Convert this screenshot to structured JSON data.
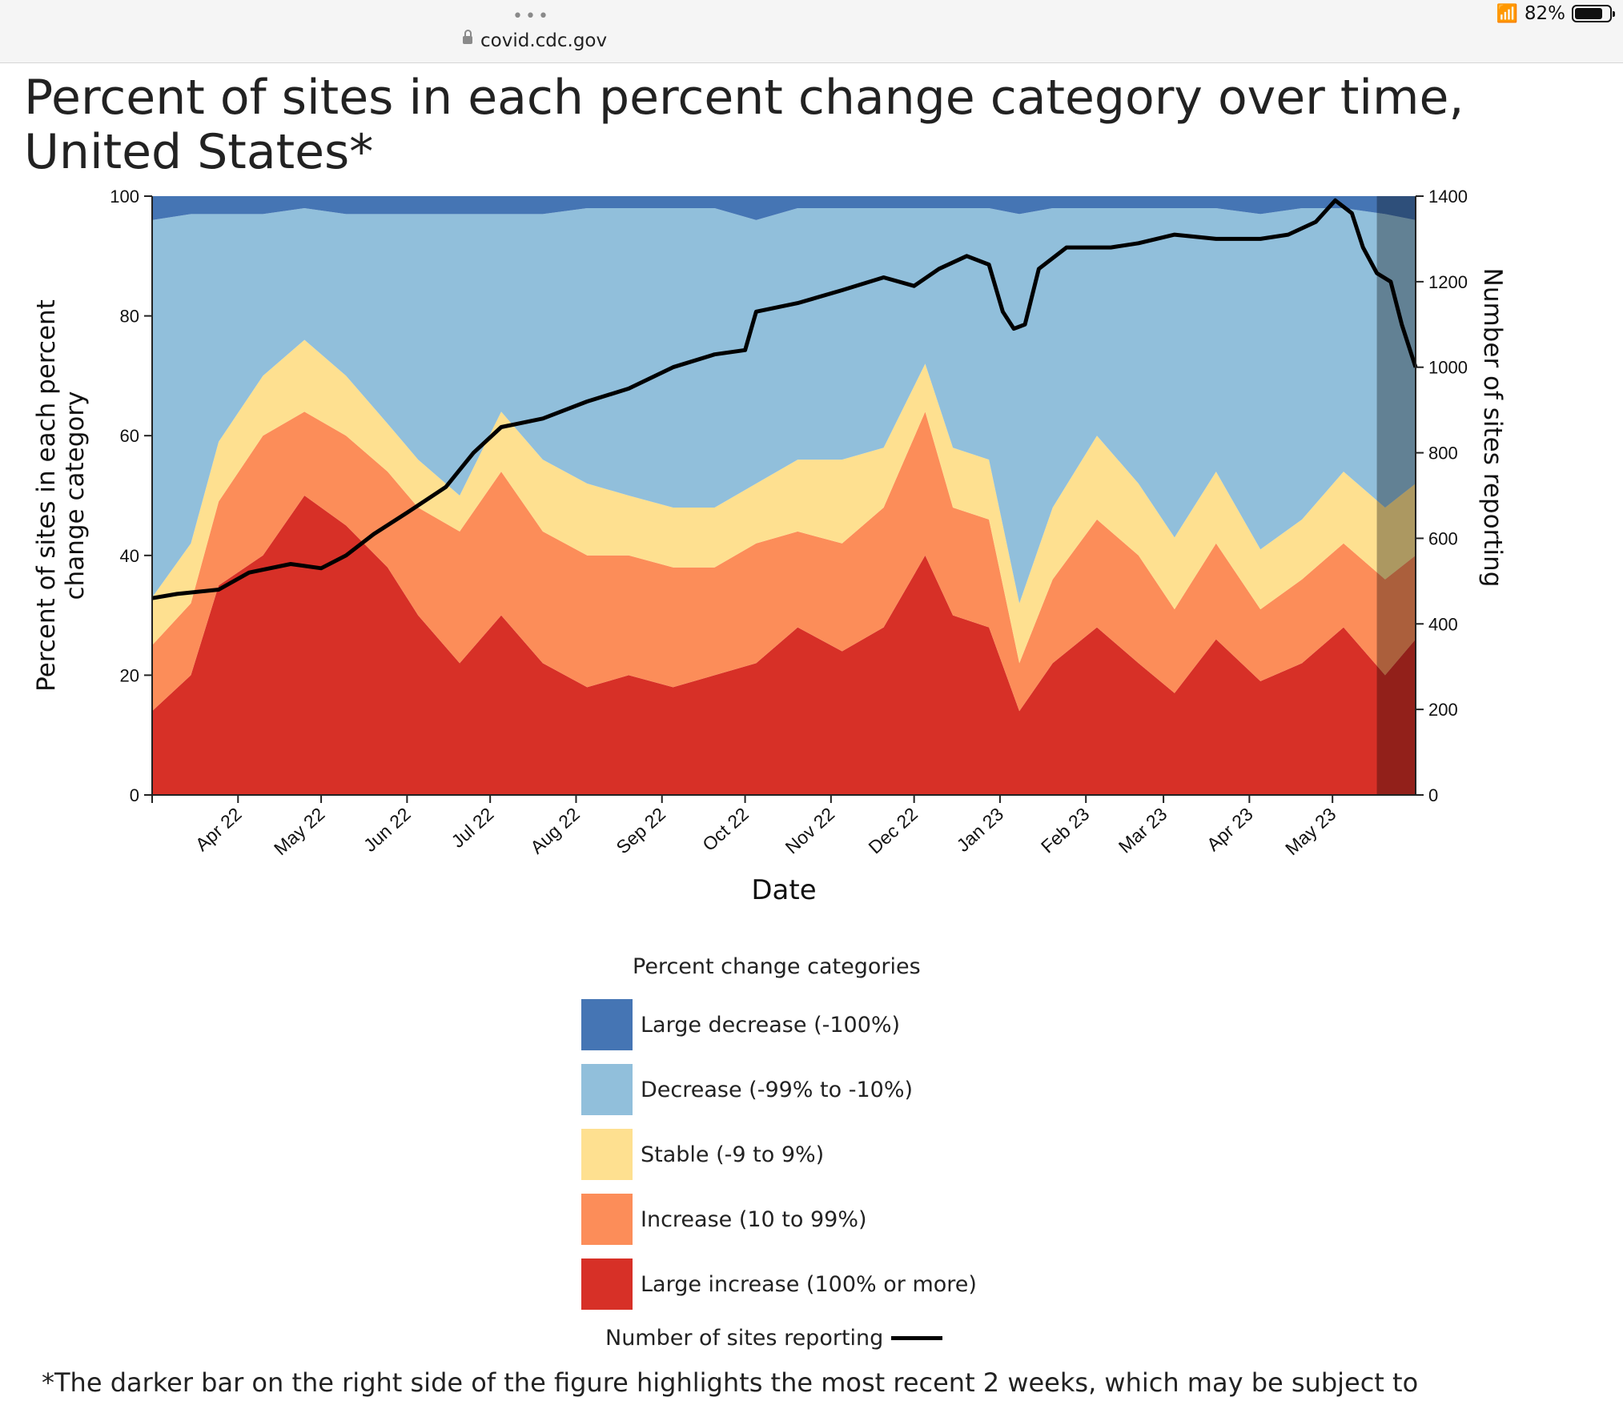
{
  "browser": {
    "url": "covid.cdc.gov",
    "battery": "82%",
    "battery_level": 0.82,
    "menu_dots": "•••"
  },
  "page": {
    "title": "Percent of sites in each percent change category over time, United States*",
    "footnote": "*The darker bar on the right side of the figure highlights the most recent 2 weeks, which may be subject to"
  },
  "legend": {
    "title": "Percent change categories",
    "items": [
      {
        "label": "Large decrease (-100%)",
        "color": "#4575b4"
      },
      {
        "label": "Decrease (-99% to -10%)",
        "color": "#91bfdb"
      },
      {
        "label": "Stable (-9 to 9%)",
        "color": "#fee090"
      },
      {
        "label": "Increase (10 to 99%)",
        "color": "#fc8d59"
      },
      {
        "label": "Large increase (100% or more)",
        "color": "#d73027"
      }
    ],
    "line_label": "Number of sites reporting"
  },
  "chart_data": {
    "type": "area",
    "stacked": true,
    "xlabel": "Date",
    "ylabel": "Percent of sites in each percent change category",
    "y2label": "Number of sites reporting",
    "ylim": [
      0,
      100
    ],
    "y2lim": [
      0,
      1400
    ],
    "yticks": [
      "0",
      "20",
      "40",
      "60",
      "80",
      "100"
    ],
    "y2ticks": [
      "0",
      "200",
      "400",
      "600",
      "800",
      "1000",
      "1200",
      "1400"
    ],
    "xticks": [
      "Apr 22",
      "May 22",
      "Jun 22",
      "Jul 22",
      "Aug 22",
      "Sep 22",
      "Oct 22",
      "Nov 22",
      "Dec 22",
      "Jan 23",
      "Feb 23",
      "Mar 23",
      "Apr 23",
      "May 23"
    ],
    "x_range": [
      "2022-03-01",
      "2023-05-31"
    ],
    "highlight_start": "2023-05-17",
    "series": [
      {
        "name": "Large increase (100% or more)",
        "color": "#d73027",
        "points": [
          [
            "2022-03-01",
            14
          ],
          [
            "2022-03-15",
            20
          ],
          [
            "2022-03-25",
            35
          ],
          [
            "2022-04-10",
            40
          ],
          [
            "2022-04-25",
            50
          ],
          [
            "2022-05-10",
            45
          ],
          [
            "2022-05-25",
            38
          ],
          [
            "2022-06-05",
            30
          ],
          [
            "2022-06-20",
            22
          ],
          [
            "2022-07-05",
            30
          ],
          [
            "2022-07-20",
            22
          ],
          [
            "2022-08-05",
            18
          ],
          [
            "2022-08-20",
            20
          ],
          [
            "2022-09-05",
            18
          ],
          [
            "2022-09-20",
            20
          ],
          [
            "2022-10-05",
            22
          ],
          [
            "2022-10-20",
            28
          ],
          [
            "2022-11-05",
            24
          ],
          [
            "2022-11-20",
            28
          ],
          [
            "2022-12-05",
            40
          ],
          [
            "2022-12-15",
            30
          ],
          [
            "2022-12-28",
            28
          ],
          [
            "2023-01-08",
            14
          ],
          [
            "2023-01-20",
            22
          ],
          [
            "2023-02-05",
            28
          ],
          [
            "2023-02-20",
            22
          ],
          [
            "2023-03-05",
            17
          ],
          [
            "2023-03-20",
            26
          ],
          [
            "2023-04-05",
            19
          ],
          [
            "2023-04-20",
            22
          ],
          [
            "2023-05-05",
            28
          ],
          [
            "2023-05-20",
            20
          ],
          [
            "2023-05-31",
            26
          ]
        ]
      },
      {
        "name": "Increase (10 to 99%)",
        "color": "#fc8d59",
        "points": [
          [
            "2022-03-01",
            11
          ],
          [
            "2022-03-15",
            12
          ],
          [
            "2022-03-25",
            14
          ],
          [
            "2022-04-10",
            20
          ],
          [
            "2022-04-25",
            14
          ],
          [
            "2022-05-10",
            15
          ],
          [
            "2022-05-25",
            16
          ],
          [
            "2022-06-05",
            18
          ],
          [
            "2022-06-20",
            22
          ],
          [
            "2022-07-05",
            24
          ],
          [
            "2022-07-20",
            22
          ],
          [
            "2022-08-05",
            22
          ],
          [
            "2022-08-20",
            20
          ],
          [
            "2022-09-05",
            20
          ],
          [
            "2022-09-20",
            18
          ],
          [
            "2022-10-05",
            20
          ],
          [
            "2022-10-20",
            16
          ],
          [
            "2022-11-05",
            18
          ],
          [
            "2022-11-20",
            20
          ],
          [
            "2022-12-05",
            24
          ],
          [
            "2022-12-15",
            18
          ],
          [
            "2022-12-28",
            18
          ],
          [
            "2023-01-08",
            8
          ],
          [
            "2023-01-20",
            14
          ],
          [
            "2023-02-05",
            18
          ],
          [
            "2023-02-20",
            18
          ],
          [
            "2023-03-05",
            14
          ],
          [
            "2023-03-20",
            16
          ],
          [
            "2023-04-05",
            12
          ],
          [
            "2023-04-20",
            14
          ],
          [
            "2023-05-05",
            14
          ],
          [
            "2023-05-20",
            16
          ],
          [
            "2023-05-31",
            14
          ]
        ]
      },
      {
        "name": "Stable (-9 to 9%)",
        "color": "#fee090",
        "points": [
          [
            "2022-03-01",
            8
          ],
          [
            "2022-03-15",
            10
          ],
          [
            "2022-03-25",
            10
          ],
          [
            "2022-04-10",
            10
          ],
          [
            "2022-04-25",
            12
          ],
          [
            "2022-05-10",
            10
          ],
          [
            "2022-05-25",
            8
          ],
          [
            "2022-06-05",
            8
          ],
          [
            "2022-06-20",
            6
          ],
          [
            "2022-07-05",
            10
          ],
          [
            "2022-07-20",
            12
          ],
          [
            "2022-08-05",
            12
          ],
          [
            "2022-08-20",
            10
          ],
          [
            "2022-09-05",
            10
          ],
          [
            "2022-09-20",
            10
          ],
          [
            "2022-10-05",
            10
          ],
          [
            "2022-10-20",
            12
          ],
          [
            "2022-11-05",
            14
          ],
          [
            "2022-11-20",
            10
          ],
          [
            "2022-12-05",
            8
          ],
          [
            "2022-12-15",
            10
          ],
          [
            "2022-12-28",
            10
          ],
          [
            "2023-01-08",
            10
          ],
          [
            "2023-01-20",
            12
          ],
          [
            "2023-02-05",
            14
          ],
          [
            "2023-02-20",
            12
          ],
          [
            "2023-03-05",
            12
          ],
          [
            "2023-03-20",
            12
          ],
          [
            "2023-04-05",
            10
          ],
          [
            "2023-04-20",
            10
          ],
          [
            "2023-05-05",
            12
          ],
          [
            "2023-05-20",
            12
          ],
          [
            "2023-05-31",
            12
          ]
        ]
      },
      {
        "name": "Decrease (-99% to -10%)",
        "color": "#91bfdb",
        "points": [
          [
            "2022-03-01",
            63
          ],
          [
            "2022-03-15",
            55
          ],
          [
            "2022-03-25",
            38
          ],
          [
            "2022-04-10",
            27
          ],
          [
            "2022-04-25",
            22
          ],
          [
            "2022-05-10",
            27
          ],
          [
            "2022-05-25",
            35
          ],
          [
            "2022-06-05",
            41
          ],
          [
            "2022-06-20",
            47
          ],
          [
            "2022-07-05",
            33
          ],
          [
            "2022-07-20",
            41
          ],
          [
            "2022-08-05",
            46
          ],
          [
            "2022-08-20",
            48
          ],
          [
            "2022-09-05",
            50
          ],
          [
            "2022-09-20",
            50
          ],
          [
            "2022-10-05",
            44
          ],
          [
            "2022-10-20",
            42
          ],
          [
            "2022-11-05",
            42
          ],
          [
            "2022-11-20",
            40
          ],
          [
            "2022-12-05",
            26
          ],
          [
            "2022-12-15",
            40
          ],
          [
            "2022-12-28",
            42
          ],
          [
            "2023-01-08",
            65
          ],
          [
            "2023-01-20",
            50
          ],
          [
            "2023-02-05",
            38
          ],
          [
            "2023-02-20",
            46
          ],
          [
            "2023-03-05",
            55
          ],
          [
            "2023-03-20",
            44
          ],
          [
            "2023-04-05",
            56
          ],
          [
            "2023-04-20",
            52
          ],
          [
            "2023-05-05",
            44
          ],
          [
            "2023-05-20",
            49
          ],
          [
            "2023-05-31",
            44
          ]
        ]
      },
      {
        "name": "Large decrease (-100%)",
        "color": "#4575b4",
        "points": [
          [
            "2022-03-01",
            4
          ],
          [
            "2022-03-15",
            3
          ],
          [
            "2022-03-25",
            3
          ],
          [
            "2022-04-10",
            3
          ],
          [
            "2022-04-25",
            2
          ],
          [
            "2022-05-10",
            3
          ],
          [
            "2022-05-25",
            3
          ],
          [
            "2022-06-05",
            3
          ],
          [
            "2022-06-20",
            3
          ],
          [
            "2022-07-05",
            3
          ],
          [
            "2022-07-20",
            3
          ],
          [
            "2022-08-05",
            2
          ],
          [
            "2022-08-20",
            2
          ],
          [
            "2022-09-05",
            2
          ],
          [
            "2022-09-20",
            2
          ],
          [
            "2022-10-05",
            4
          ],
          [
            "2022-10-20",
            2
          ],
          [
            "2022-11-05",
            2
          ],
          [
            "2022-11-20",
            2
          ],
          [
            "2022-12-05",
            2
          ],
          [
            "2022-12-15",
            2
          ],
          [
            "2022-12-28",
            2
          ],
          [
            "2023-01-08",
            3
          ],
          [
            "2023-01-20",
            2
          ],
          [
            "2023-02-05",
            2
          ],
          [
            "2023-02-20",
            2
          ],
          [
            "2023-03-05",
            2
          ],
          [
            "2023-03-20",
            2
          ],
          [
            "2023-04-05",
            3
          ],
          [
            "2023-04-20",
            2
          ],
          [
            "2023-05-05",
            2
          ],
          [
            "2023-05-20",
            3
          ],
          [
            "2023-05-31",
            4
          ]
        ]
      }
    ],
    "line": {
      "name": "Number of sites reporting",
      "color": "#000000",
      "points": [
        [
          "2022-03-01",
          460
        ],
        [
          "2022-03-10",
          470
        ],
        [
          "2022-03-25",
          480
        ],
        [
          "2022-04-05",
          520
        ],
        [
          "2022-04-20",
          540
        ],
        [
          "2022-05-01",
          530
        ],
        [
          "2022-05-10",
          560
        ],
        [
          "2022-05-20",
          610
        ],
        [
          "2022-06-01",
          660
        ],
        [
          "2022-06-15",
          720
        ],
        [
          "2022-06-25",
          800
        ],
        [
          "2022-07-05",
          860
        ],
        [
          "2022-07-20",
          880
        ],
        [
          "2022-08-05",
          920
        ],
        [
          "2022-08-20",
          950
        ],
        [
          "2022-09-05",
          1000
        ],
        [
          "2022-09-20",
          1030
        ],
        [
          "2022-10-01",
          1040
        ],
        [
          "2022-10-05",
          1130
        ],
        [
          "2022-10-20",
          1150
        ],
        [
          "2022-11-05",
          1180
        ],
        [
          "2022-11-20",
          1210
        ],
        [
          "2022-12-01",
          1190
        ],
        [
          "2022-12-10",
          1230
        ],
        [
          "2022-12-20",
          1260
        ],
        [
          "2022-12-28",
          1240
        ],
        [
          "2023-01-02",
          1130
        ],
        [
          "2023-01-06",
          1090
        ],
        [
          "2023-01-10",
          1100
        ],
        [
          "2023-01-15",
          1230
        ],
        [
          "2023-01-25",
          1280
        ],
        [
          "2023-02-10",
          1280
        ],
        [
          "2023-02-20",
          1290
        ],
        [
          "2023-03-05",
          1310
        ],
        [
          "2023-03-20",
          1300
        ],
        [
          "2023-04-05",
          1300
        ],
        [
          "2023-04-15",
          1310
        ],
        [
          "2023-04-25",
          1340
        ],
        [
          "2023-05-02",
          1390
        ],
        [
          "2023-05-08",
          1360
        ],
        [
          "2023-05-12",
          1280
        ],
        [
          "2023-05-17",
          1220
        ],
        [
          "2023-05-22",
          1200
        ],
        [
          "2023-05-26",
          1100
        ],
        [
          "2023-05-31",
          1000
        ]
      ]
    }
  }
}
